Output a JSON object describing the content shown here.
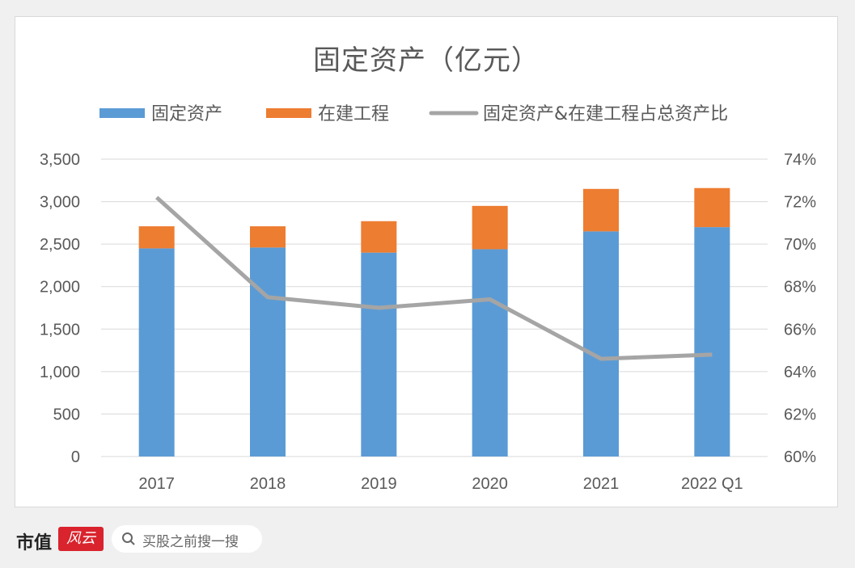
{
  "chart_data": {
    "type": "bar",
    "title": "固定资产（亿元）",
    "categories": [
      "2017",
      "2018",
      "2019",
      "2020",
      "2021",
      "2022 Q1"
    ],
    "series": [
      {
        "name": "固定资产",
        "kind": "bar",
        "axis": "left",
        "stack": true,
        "color": "#5b9bd5",
        "values": [
          2450,
          2460,
          2400,
          2440,
          2650,
          2700
        ]
      },
      {
        "name": "在建工程",
        "kind": "bar",
        "axis": "left",
        "stack": true,
        "color": "#ed7d31",
        "values": [
          260,
          250,
          370,
          510,
          500,
          460
        ]
      },
      {
        "name": "固定资产&在建工程占总资产比",
        "kind": "line",
        "axis": "right",
        "color": "#a5a5a5",
        "values": [
          72.2,
          67.5,
          67.0,
          67.4,
          64.6,
          64.8
        ]
      }
    ],
    "y_left": {
      "min": 0,
      "max": 3500,
      "ticks": [
        "0",
        "500",
        "1,000",
        "1,500",
        "2,000",
        "2,500",
        "3,000",
        "3,500"
      ]
    },
    "y_right": {
      "min": 60,
      "max": 74,
      "ticks": [
        "60%",
        "62%",
        "64%",
        "66%",
        "68%",
        "70%",
        "72%",
        "74%"
      ]
    },
    "grid": true,
    "legend_position": "top"
  },
  "footer": {
    "brand": "市值",
    "brand_mark": "风云",
    "search_placeholder": "买股之前搜一搜"
  }
}
